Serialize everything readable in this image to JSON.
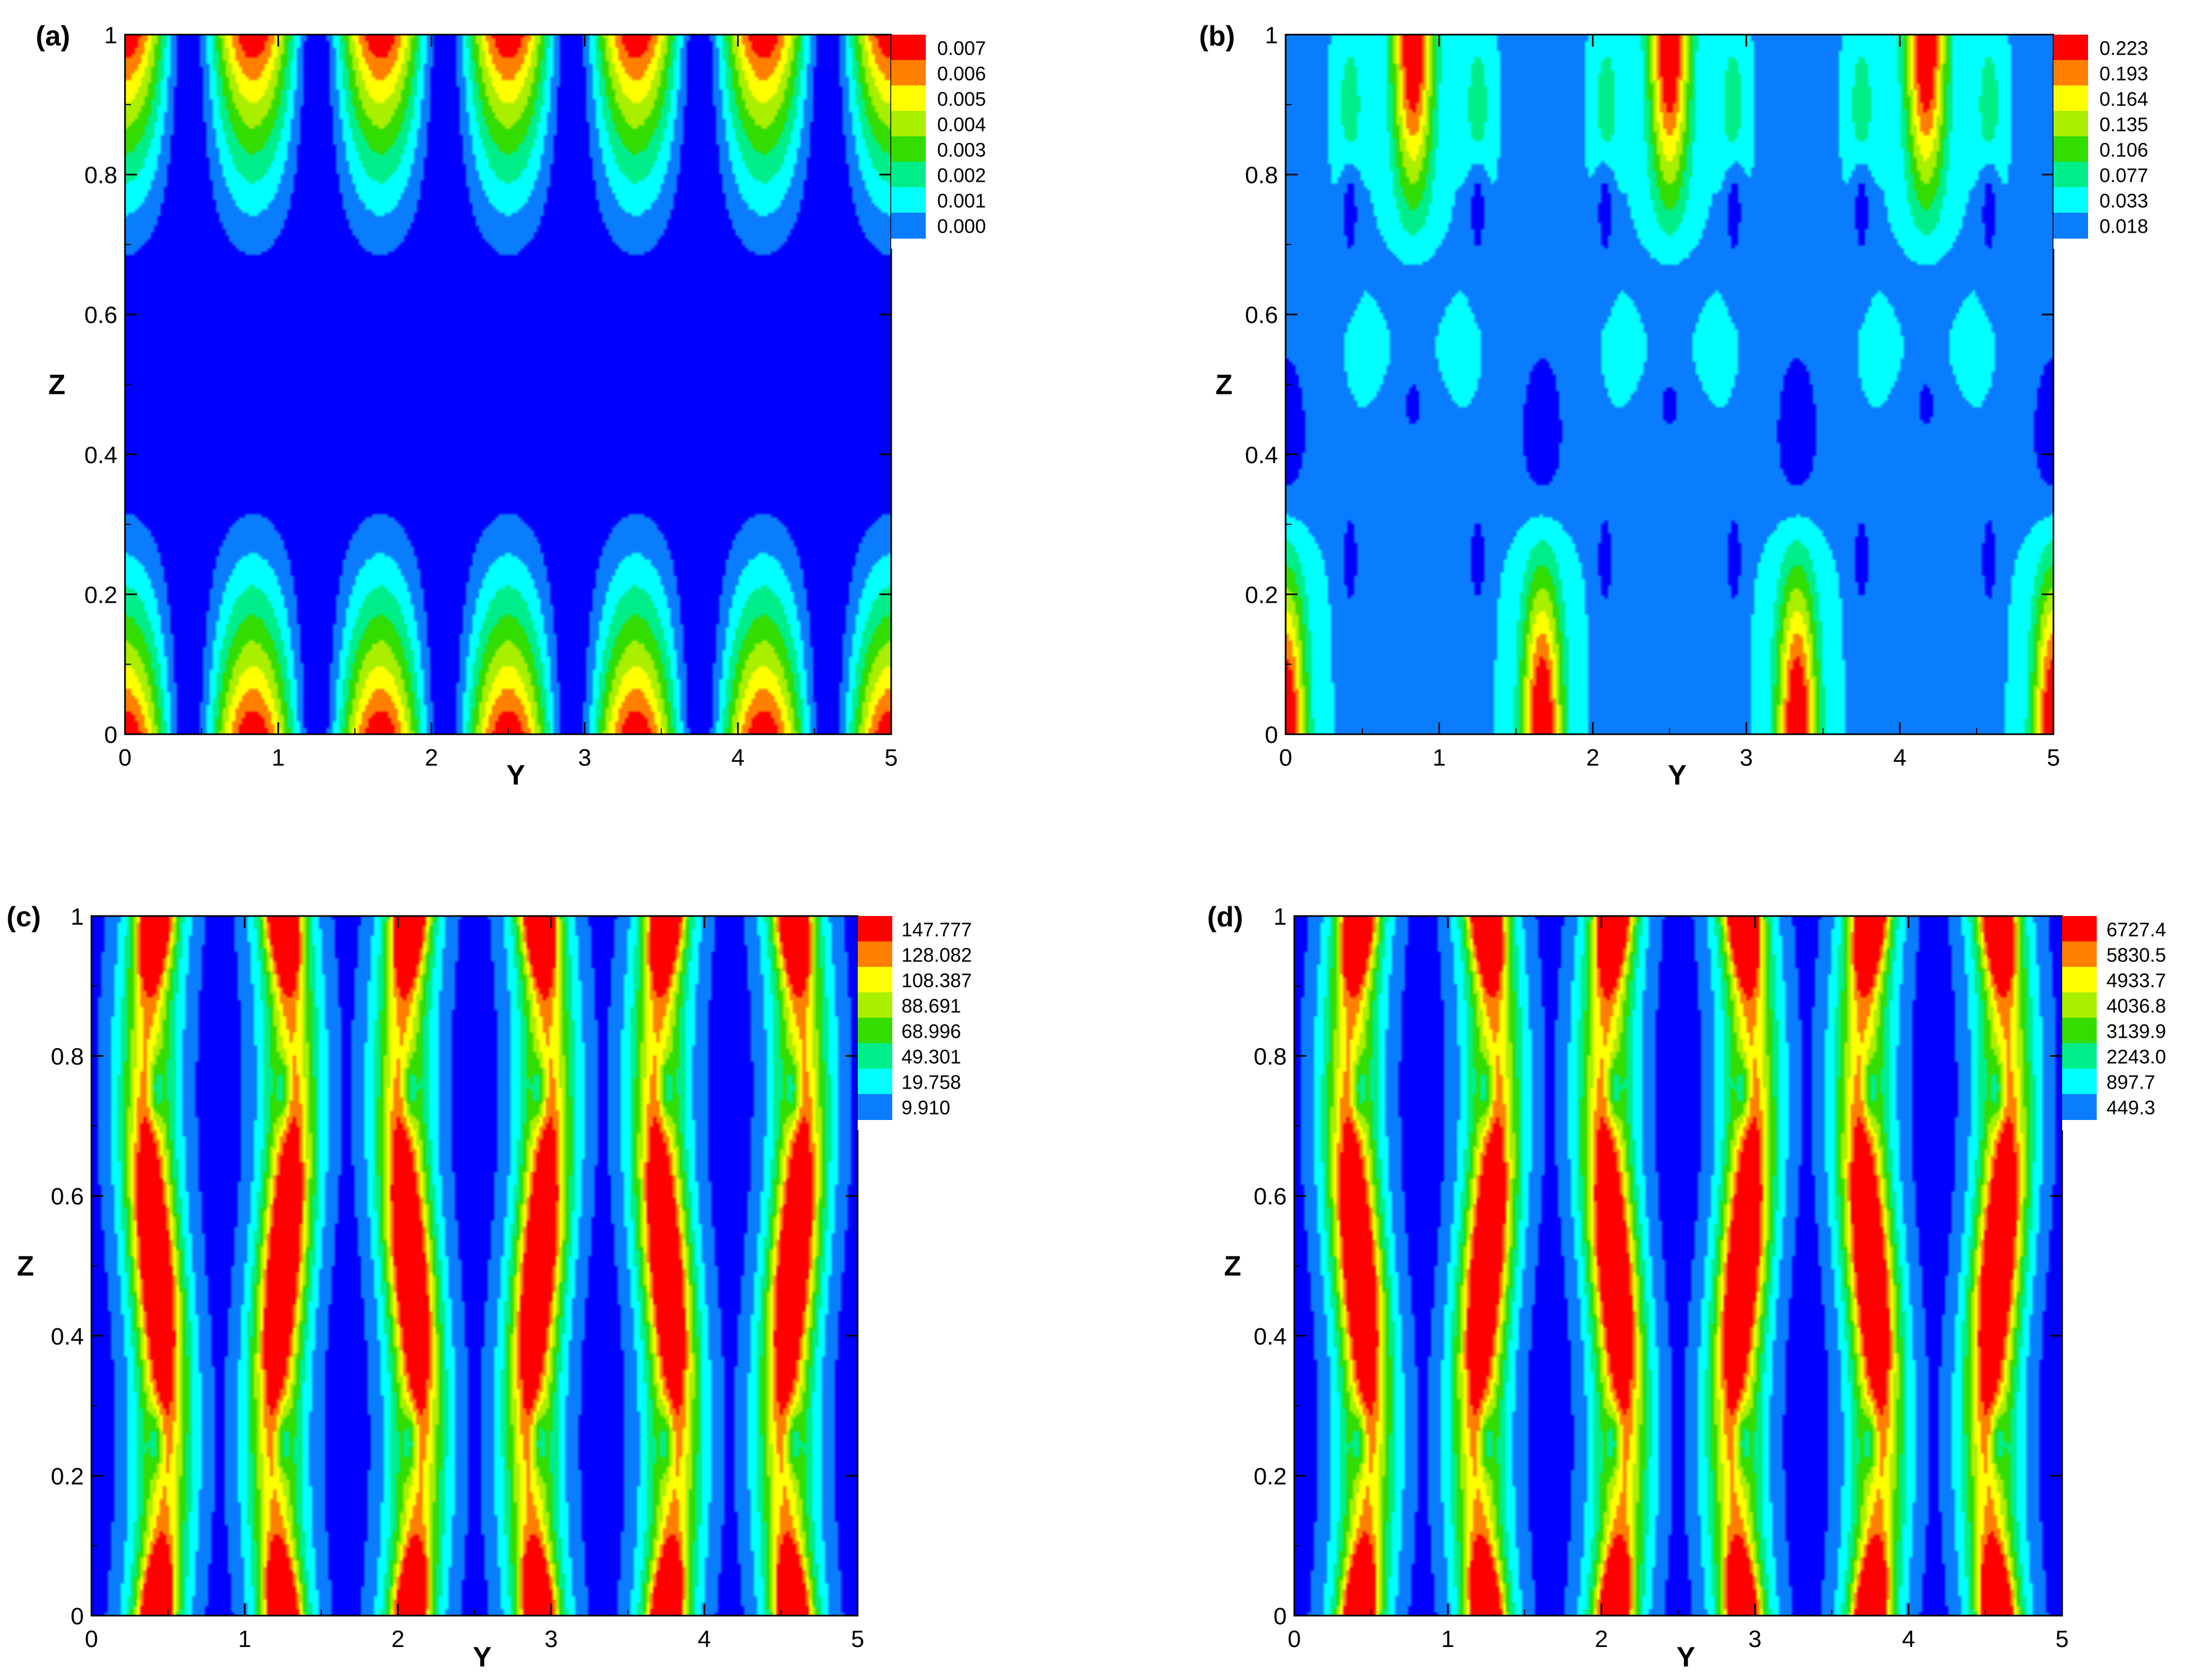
{
  "figure": {
    "background": "#ffffff",
    "colormap": [
      "#0000ff",
      "#0a7dff",
      "#00ffff",
      "#00ee8a",
      "#33dd00",
      "#aaee00",
      "#ffff00",
      "#ff8000",
      "#ff0000"
    ],
    "contour_line_color": "#b03a2e"
  },
  "chart_data": [
    {
      "type": "heatmap",
      "panel_label": "(a)",
      "xlabel": "Y",
      "ylabel": "Z",
      "xlim": [
        0,
        5
      ],
      "ylim": [
        0,
        1
      ],
      "xticks": [
        "0",
        "1",
        "2",
        "3",
        "4",
        "5"
      ],
      "yticks": [
        "0",
        "0.2",
        "0.4",
        "0.6",
        "0.8",
        "1"
      ],
      "legend_levels": [
        "0.007",
        "0.006",
        "0.005",
        "0.004",
        "0.003",
        "0.002",
        "0.001",
        "0.000"
      ],
      "field": {
        "pattern": "wall-cells",
        "cell_centers_y": [
          0,
          0.83,
          1.67,
          2.5,
          3.33,
          4.17,
          5
        ],
        "peaks_z": [
          0,
          1
        ],
        "quiet_band_z": [
          0.42,
          0.58
        ],
        "max": 0.007
      }
    },
    {
      "type": "heatmap",
      "panel_label": "(b)",
      "xlabel": "Y",
      "ylabel": "Z",
      "xlim": [
        0,
        5
      ],
      "ylim": [
        0,
        1
      ],
      "xticks": [
        "0",
        "1",
        "2",
        "3",
        "4",
        "5"
      ],
      "yticks": [
        "0",
        "0.2",
        "0.4",
        "0.6",
        "0.8",
        "1"
      ],
      "legend_levels": [
        "0.223",
        "0.193",
        "0.164",
        "0.135",
        "0.106",
        "0.077",
        "0.033",
        "0.018"
      ],
      "field": {
        "pattern": "staggered",
        "top_peaks_y": [
          0.83,
          2.5,
          4.17
        ],
        "bottom_peaks_y": [
          0,
          1.67,
          3.33,
          5
        ],
        "max": 0.223
      }
    },
    {
      "type": "heatmap",
      "panel_label": "(c)",
      "xlabel": "Y",
      "ylabel": "Z",
      "xlim": [
        0,
        5
      ],
      "ylim": [
        0,
        1
      ],
      "xticks": [
        "0",
        "1",
        "2",
        "3",
        "4",
        "5"
      ],
      "yticks": [
        "0",
        "0.2",
        "0.4",
        "0.6",
        "0.8",
        "1"
      ],
      "legend_levels": [
        "147.777",
        "128.082",
        "108.387",
        "88.691",
        "68.996",
        "49.301",
        "19.758",
        "9.910"
      ],
      "field": {
        "pattern": "wavy-columns",
        "column_centers_y": [
          0.42,
          1.25,
          2.08,
          2.92,
          3.75,
          4.58
        ],
        "core_z": 0.5,
        "max": 147.777
      }
    },
    {
      "type": "heatmap",
      "panel_label": "(d)",
      "xlabel": "Y",
      "ylabel": "Z",
      "xlim": [
        0,
        5
      ],
      "ylim": [
        0,
        1
      ],
      "xticks": [
        "0",
        "1",
        "2",
        "3",
        "4",
        "5"
      ],
      "yticks": [
        "0",
        "0.2",
        "0.4",
        "0.6",
        "0.8",
        "1"
      ],
      "legend_levels": [
        "6727.4",
        "5830.5",
        "4933.7",
        "4036.8",
        "3139.9",
        "2243.0",
        "897.7",
        "449.3"
      ],
      "field": {
        "pattern": "wavy-columns",
        "column_centers_y": [
          0.42,
          1.25,
          2.08,
          2.92,
          3.75,
          4.58
        ],
        "core_z": 0.5,
        "max": 6727.4
      }
    }
  ]
}
